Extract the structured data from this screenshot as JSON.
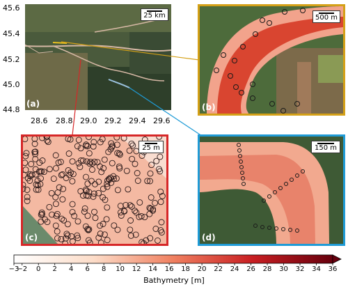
{
  "panel_a": {
    "label": "(a)",
    "scale": "25 km",
    "yticks": [
      "45.6",
      "45.4",
      "45.2",
      "45.0",
      "44.8"
    ],
    "xticks": [
      "28.6",
      "28.8",
      "29.0",
      "29.2",
      "29.4",
      "29.6"
    ]
  },
  "panel_b": {
    "label": "(b)",
    "scale": "500 m",
    "frame_color": "#d4a017"
  },
  "panel_c": {
    "label": "(c)",
    "scale": "25 m",
    "frame_color": "#d62728"
  },
  "panel_d": {
    "label": "(d)",
    "scale": "150 m",
    "frame_color": "#1f9bd6"
  },
  "colorbar": {
    "label": "Bathymetry [m]",
    "ticks": [
      "−3",
      "−2",
      "0",
      "2",
      "4",
      "6",
      "8",
      "10",
      "12",
      "14",
      "16",
      "18",
      "20",
      "22",
      "24",
      "26",
      "28",
      "30",
      "32",
      "34",
      "36"
    ]
  }
}
